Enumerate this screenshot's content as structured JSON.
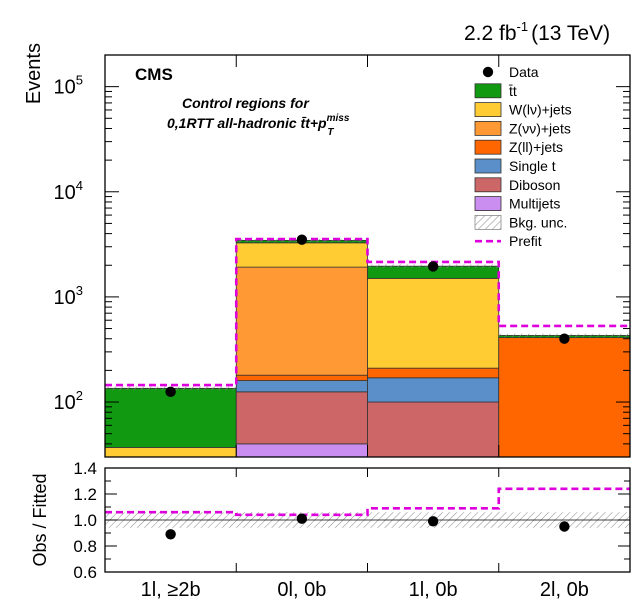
{
  "header": {
    "lumi": "2.2 fb",
    "lumi_sup": "-1",
    "energy": "(13 TeV)"
  },
  "chart_data": [
    {
      "type": "bar",
      "stacked": true,
      "yscale": "log",
      "ylim": [
        30,
        200000
      ],
      "ylabel": "Events",
      "categories": [
        "1l, ≥2b",
        "0l, 0b",
        "1l, 0b",
        "2l, 0b"
      ],
      "experiment": "CMS",
      "annotation_line1": "Control regions for",
      "annotation_line2": "0,1RTT all-hadronic t̄t+p",
      "annotation_sub": "T",
      "annotation_sup": "miss",
      "legend_position": "top-right",
      "legend_title": "",
      "yticks": [
        {
          "value": 100,
          "base": "10",
          "exp": "2"
        },
        {
          "value": 1000,
          "base": "10",
          "exp": "3"
        },
        {
          "value": 10000,
          "base": "10",
          "exp": "4"
        },
        {
          "value": 100000,
          "base": "10",
          "exp": "5"
        }
      ],
      "series": [
        {
          "name": "Multijets",
          "color": "#c98ef0",
          "values": [
            0,
            40,
            0,
            0
          ]
        },
        {
          "name": "Diboson",
          "color": "#cd6666",
          "values": [
            0,
            85,
            100,
            0
          ]
        },
        {
          "name": "Single t",
          "color": "#5b8fc9",
          "values": [
            0,
            35,
            70,
            0
          ]
        },
        {
          "name": "Z(ll)+jets",
          "color": "#ff6600",
          "values": [
            0,
            20,
            40,
            410
          ]
        },
        {
          "name": "Z(νν)+jets",
          "color": "#ff9933",
          "values": [
            0,
            1740,
            0,
            0
          ]
        },
        {
          "name": "W(lν)+jets",
          "color": "#ffcc33",
          "values": [
            37,
            1350,
            1290,
            0
          ]
        },
        {
          "name": "t̄t",
          "color": "#119911",
          "values": [
            98,
            180,
            460,
            20
          ]
        }
      ],
      "data_points": [
        125,
        3500,
        1950,
        400
      ],
      "prefit": [
        145,
        3550,
        2150,
        530
      ],
      "legend_entries": [
        {
          "label": "Data",
          "kind": "marker"
        },
        {
          "label": "t̄t",
          "kind": "box",
          "color": "#119911"
        },
        {
          "label": "W(lν)+jets",
          "kind": "box",
          "color": "#ffcc33"
        },
        {
          "label": "Z(νν)+jets",
          "kind": "box",
          "color": "#ff9933"
        },
        {
          "label": "Z(ll)+jets",
          "kind": "box",
          "color": "#ff6600"
        },
        {
          "label": "Single t",
          "kind": "box",
          "color": "#5b8fc9"
        },
        {
          "label": "Diboson",
          "kind": "box",
          "color": "#cd6666"
        },
        {
          "label": "Multijets",
          "kind": "box",
          "color": "#c98ef0"
        },
        {
          "label": "Bkg. unc.",
          "kind": "hatch"
        },
        {
          "label": "Prefit",
          "kind": "dashed",
          "color": "#dd00dd"
        }
      ]
    },
    {
      "type": "scatter",
      "ylabel": "Obs / Fitted",
      "ylim": [
        0.6,
        1.4
      ],
      "yticks": [
        "0.6",
        "0.8",
        "1.0",
        "1.2",
        "1.4"
      ],
      "categories": [
        "1l, ≥2b",
        "0l, 0b",
        "1l, 0b",
        "2l, 0b"
      ],
      "ratio": [
        0.89,
        1.01,
        0.99,
        0.95
      ],
      "prefit_ratio": [
        1.06,
        1.04,
        1.09,
        1.24
      ],
      "unc_band": [
        0.94,
        1.06
      ]
    }
  ]
}
